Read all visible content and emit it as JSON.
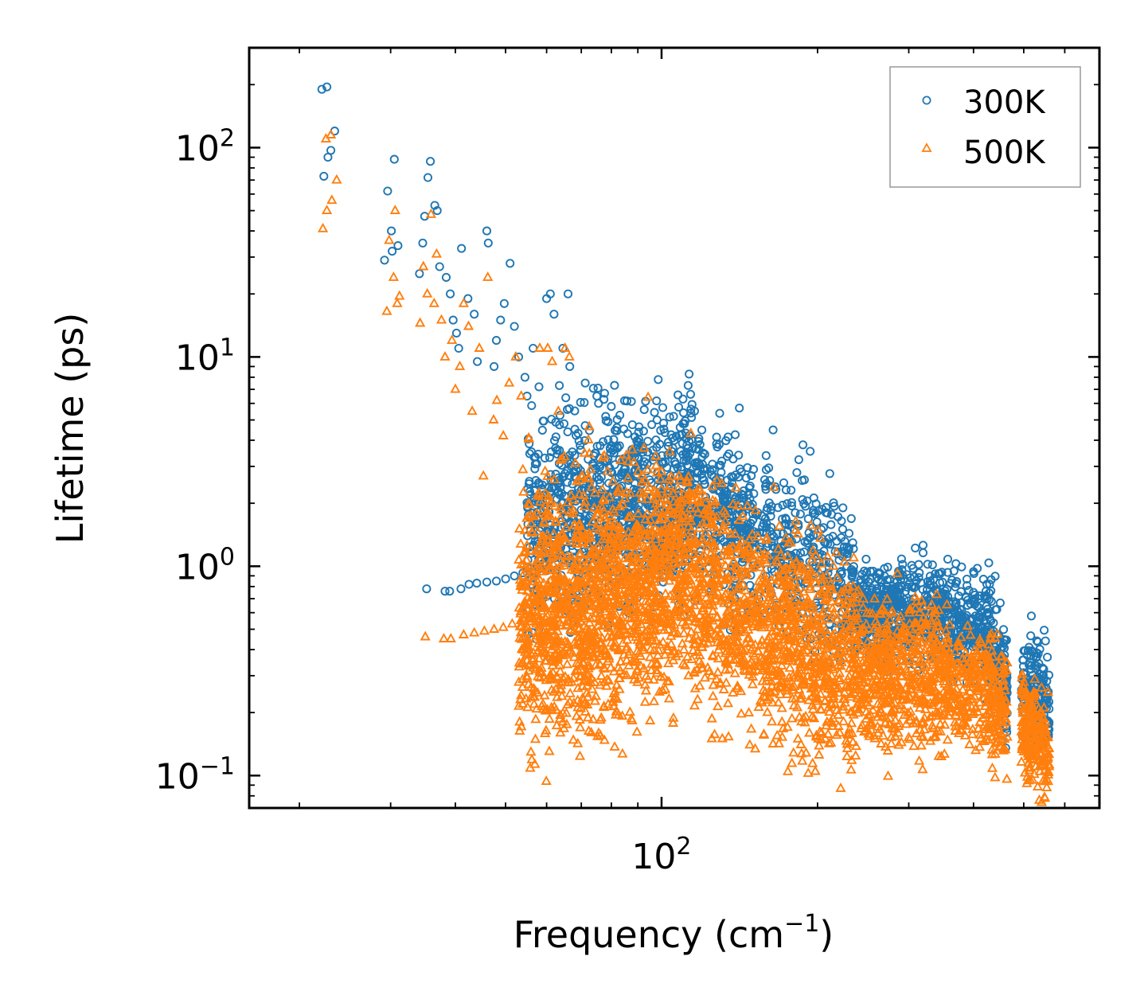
{
  "chart_data": {
    "type": "scatter",
    "title": "",
    "xlabel": "Frequency (cm",
    "xlabel_sup": "−1",
    "xlabel_tail": ")",
    "ylabel": "Lifetime (ps)",
    "xscale": "log",
    "yscale": "log",
    "xlim": [
      16,
      700
    ],
    "ylim": [
      0.07,
      300
    ],
    "x_major_ticks": [
      {
        "value": 100,
        "base": "10",
        "exp": "2"
      }
    ],
    "y_major_ticks": [
      {
        "value": 0.1,
        "base": "10",
        "exp": "−1"
      },
      {
        "value": 1,
        "base": "10",
        "exp": "0"
      },
      {
        "value": 10,
        "base": "10",
        "exp": "1"
      },
      {
        "value": 100,
        "base": "10",
        "exp": "2"
      }
    ],
    "legend_position": "top-right",
    "series": [
      {
        "name": "300K",
        "marker": "circle",
        "color": "#1f77b4",
        "points": [
          [
            22.1,
            190
          ],
          [
            22.6,
            195
          ],
          [
            23.4,
            120
          ],
          [
            22.3,
            73
          ],
          [
            22.7,
            90
          ],
          [
            23.0,
            97
          ],
          [
            30.5,
            88
          ],
          [
            30.1,
            40
          ],
          [
            29.6,
            62
          ],
          [
            29.2,
            29
          ],
          [
            30.2,
            32
          ],
          [
            31.0,
            34
          ],
          [
            34.1,
            25
          ],
          [
            34.6,
            35
          ],
          [
            34.9,
            47
          ],
          [
            35.4,
            72
          ],
          [
            35.8,
            86
          ],
          [
            36.5,
            53
          ],
          [
            36.9,
            50
          ],
          [
            37.3,
            27
          ],
          [
            38.4,
            24
          ],
          [
            39.1,
            20
          ],
          [
            39.6,
            15
          ],
          [
            40.2,
            13
          ],
          [
            40.6,
            11
          ],
          [
            41.1,
            33
          ],
          [
            42.3,
            19
          ],
          [
            43.5,
            16
          ],
          [
            44.1,
            9.5
          ],
          [
            46.0,
            40
          ],
          [
            46.3,
            35
          ],
          [
            47.5,
            9
          ],
          [
            48.0,
            12
          ],
          [
            48.9,
            15
          ],
          [
            49.7,
            18
          ],
          [
            51.0,
            28
          ],
          [
            52.0,
            14
          ],
          [
            53.0,
            10
          ],
          [
            54.5,
            8
          ],
          [
            55.0,
            6.5
          ],
          [
            56.5,
            11
          ],
          [
            58.0,
            7.2
          ],
          [
            60.0,
            19
          ],
          [
            61.0,
            20
          ],
          [
            62.0,
            16
          ],
          [
            63.5,
            7.3
          ],
          [
            64.5,
            11
          ],
          [
            66.0,
            20
          ],
          [
            66.5,
            9
          ],
          [
            35.2,
            0.78
          ],
          [
            38.2,
            0.76
          ],
          [
            39.0,
            0.76
          ],
          [
            41.0,
            0.78
          ],
          [
            42.5,
            0.82
          ],
          [
            44.0,
            0.83
          ],
          [
            46.0,
            0.84
          ],
          [
            48.0,
            0.85
          ],
          [
            50.0,
            0.87
          ],
          [
            52.0,
            0.9
          ],
          [
            54.0,
            0.93
          ],
          [
            56.0,
            0.94
          ],
          [
            58.0,
            0.97
          ],
          [
            75.0,
            6.5
          ],
          [
            78.0,
            5.2
          ],
          [
            80.0,
            5.8
          ],
          [
            82.0,
            4.6
          ],
          [
            86.0,
            4.3
          ],
          [
            90.0,
            3.8
          ],
          [
            98.0,
            5.0
          ],
          [
            105.0,
            4.1
          ],
          [
            110.0,
            4.8
          ],
          [
            130.0,
            2.5
          ],
          [
            140.0,
            1.9
          ],
          [
            160.0,
            1.9
          ],
          [
            180.0,
            1.5
          ],
          [
            200.0,
            1.4
          ],
          [
            228.0,
            1.0
          ],
          [
            262.0,
            0.93
          ],
          [
            330.0,
            0.85
          ],
          [
            400.0,
            0.75
          ],
          [
            420.0,
            0.72
          ],
          [
            512.0,
            0.41
          ],
          [
            530.0,
            0.37
          ]
        ],
        "bands": [
          {
            "x": [
              55,
              115
            ],
            "yc": [
              1.5,
              2.4
            ],
            "spread": 0.34,
            "n": 1000
          },
          {
            "x": [
              115,
              235
            ],
            "yc": [
              2.0,
              0.8
            ],
            "spread": 0.28,
            "n": 650
          },
          {
            "x": [
              235,
              360
            ],
            "yc": [
              0.62,
              0.6
            ],
            "spread": 0.16,
            "n": 550
          },
          {
            "x": [
              360,
              420
            ],
            "yc": [
              0.55,
              0.5
            ],
            "spread": 0.18,
            "n": 180
          },
          {
            "x": [
              420,
              465
            ],
            "yc": [
              0.48,
              0.28
            ],
            "spread": 0.22,
            "n": 160
          },
          {
            "x": [
              495,
              560
            ],
            "yc": [
              0.26,
              0.22
            ],
            "spread": 0.18,
            "n": 200
          }
        ]
      },
      {
        "name": "500K",
        "marker": "triangle",
        "color": "#ff7f0e",
        "points": [
          [
            22.2,
            41
          ],
          [
            22.5,
            110
          ],
          [
            23.0,
            115
          ],
          [
            22.6,
            50
          ],
          [
            23.1,
            56
          ],
          [
            23.6,
            70
          ],
          [
            29.5,
            16.5
          ],
          [
            29.8,
            36
          ],
          [
            30.4,
            24
          ],
          [
            30.9,
            18
          ],
          [
            31.2,
            19.5
          ],
          [
            30.6,
            50
          ],
          [
            34.2,
            14.5
          ],
          [
            34.7,
            27
          ],
          [
            35.3,
            20
          ],
          [
            35.9,
            48
          ],
          [
            36.4,
            18
          ],
          [
            36.8,
            31
          ],
          [
            37.6,
            15
          ],
          [
            38.2,
            10
          ],
          [
            39.4,
            12
          ],
          [
            40.0,
            7
          ],
          [
            40.8,
            9
          ],
          [
            41.5,
            18
          ],
          [
            42.4,
            14
          ],
          [
            43.1,
            5.5
          ],
          [
            44.5,
            11
          ],
          [
            45.3,
            2.7
          ],
          [
            46.2,
            24
          ],
          [
            47.4,
            5
          ],
          [
            48.1,
            6.2
          ],
          [
            49.5,
            4.2
          ],
          [
            50.8,
            7.5
          ],
          [
            52.3,
            10
          ],
          [
            53.6,
            6.5
          ],
          [
            55.4,
            4.1
          ],
          [
            58.2,
            11
          ],
          [
            60.3,
            11
          ],
          [
            61.5,
            9.5
          ],
          [
            63.2,
            5.5
          ],
          [
            65.1,
            11
          ],
          [
            66.4,
            10
          ],
          [
            35.0,
            0.46
          ],
          [
            38.0,
            0.45
          ],
          [
            39.2,
            0.45
          ],
          [
            41.5,
            0.47
          ],
          [
            43.5,
            0.48
          ],
          [
            45.5,
            0.49
          ],
          [
            47.5,
            0.5
          ],
          [
            49.5,
            0.51
          ],
          [
            51.5,
            0.53
          ],
          [
            53.5,
            0.55
          ],
          [
            55.5,
            0.57
          ],
          [
            57.5,
            0.6
          ],
          [
            59.5,
            0.63
          ],
          [
            108.0,
            2.7
          ],
          [
            112.0,
            2.5
          ],
          [
            125.0,
            0.15
          ],
          [
            131.0,
            0.15
          ],
          [
            148.0,
            0.14
          ],
          [
            175.0,
            0.17
          ],
          [
            258.0,
            0.15
          ],
          [
            330.0,
            0.19
          ],
          [
            500.0,
            0.13
          ],
          [
            520.0,
            0.12
          ]
        ],
        "bands": [
          {
            "x": [
              53,
              115
            ],
            "yc": [
              0.55,
              0.95
            ],
            "spread": 0.42,
            "n": 1600
          },
          {
            "x": [
              115,
              235
            ],
            "yc": [
              0.8,
              0.32
            ],
            "spread": 0.36,
            "n": 1100
          },
          {
            "x": [
              235,
              360
            ],
            "yc": [
              0.32,
              0.3
            ],
            "spread": 0.25,
            "n": 620
          },
          {
            "x": [
              360,
              420
            ],
            "yc": [
              0.28,
              0.26
            ],
            "spread": 0.2,
            "n": 160
          },
          {
            "x": [
              420,
              465
            ],
            "yc": [
              0.26,
              0.2
            ],
            "spread": 0.2,
            "n": 160
          },
          {
            "x": [
              495,
              560
            ],
            "yc": [
              0.18,
              0.13
            ],
            "spread": 0.18,
            "n": 220
          }
        ]
      }
    ]
  }
}
